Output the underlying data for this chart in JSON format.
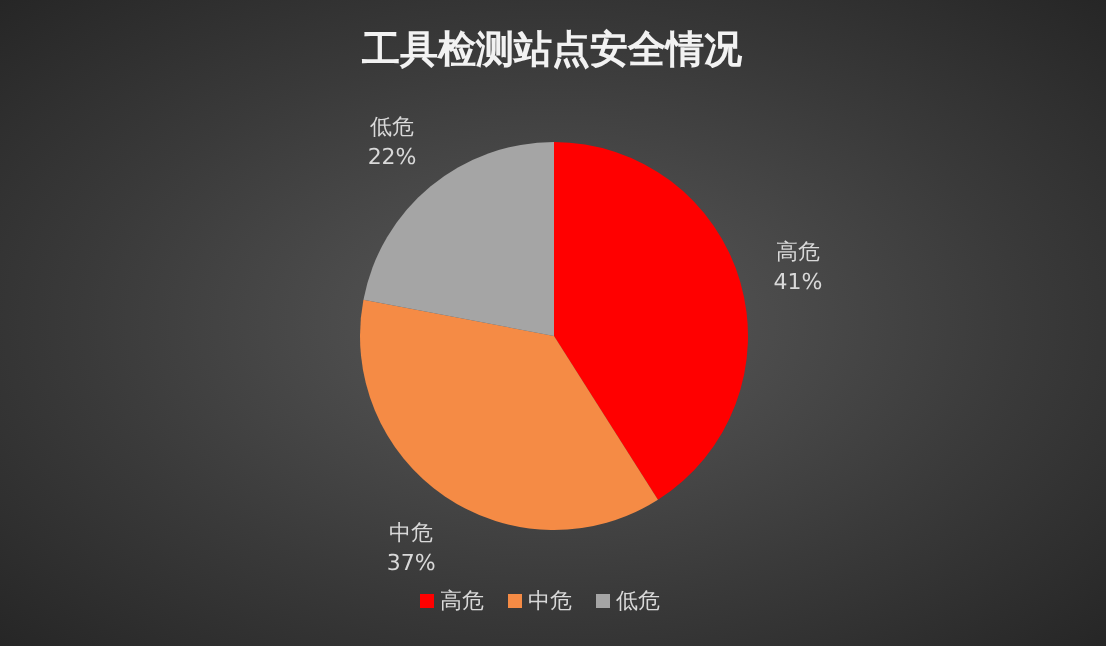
{
  "chart_data": {
    "type": "pie",
    "title": "工具检测站点安全情况",
    "categories": [
      "高危",
      "中危",
      "低危"
    ],
    "values": [
      41,
      37,
      22
    ],
    "colors": [
      "#ff0000",
      "#f58b45",
      "#a5a5a5"
    ],
    "value_labels": [
      "41%",
      "37%",
      "22%"
    ],
    "legend": "bottom"
  }
}
